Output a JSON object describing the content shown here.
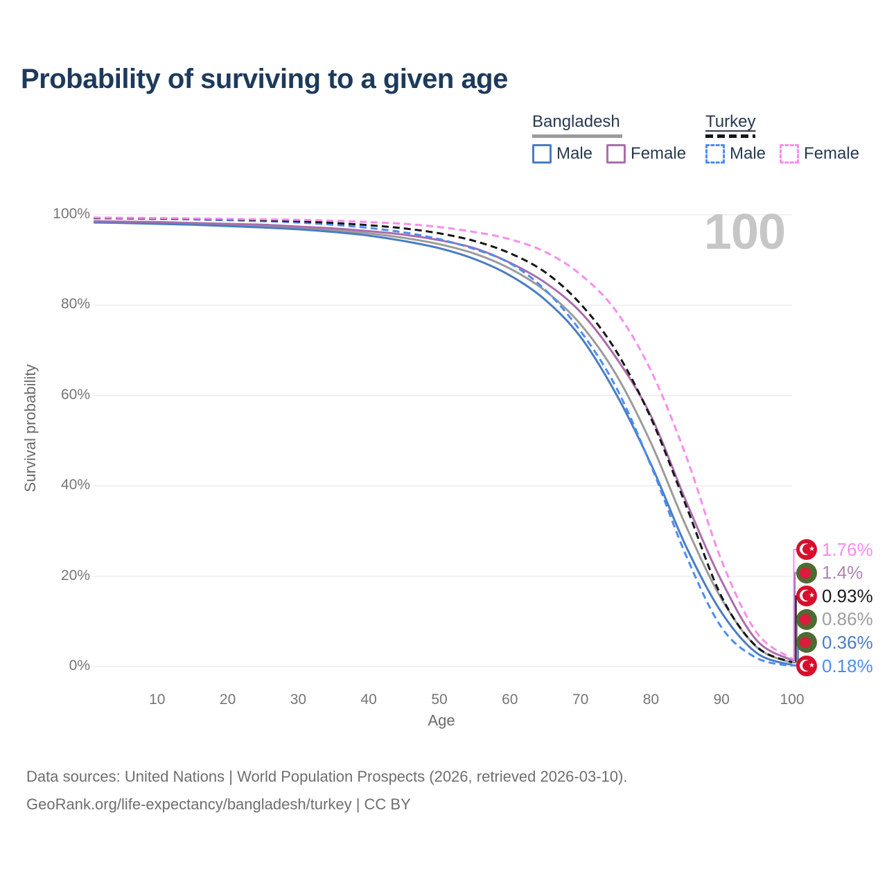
{
  "header": {
    "title": "Probability of surviving to a given age"
  },
  "watermark": "100",
  "legend": {
    "groups": [
      {
        "country": "Bangladesh",
        "style": "solid",
        "underline_color": "#9b9b9b",
        "items": [
          {
            "label": "Male",
            "color": "#4a7cc4"
          },
          {
            "label": "Female",
            "color": "#aa6dab"
          }
        ]
      },
      {
        "country": "Turkey",
        "style": "dashed",
        "underline_color": "#161616",
        "items": [
          {
            "label": "Male",
            "color": "#4b8df2"
          },
          {
            "label": "Female",
            "color": "#fb8bf0"
          }
        ]
      }
    ]
  },
  "chart_data": {
    "type": "line",
    "title": "Probability of surviving to a given age",
    "xlabel": "Age",
    "ylabel": "Survival probability",
    "xlim": [
      0,
      100
    ],
    "ylim": [
      0,
      100
    ],
    "xticks": [
      10,
      20,
      30,
      40,
      50,
      60,
      70,
      80,
      90,
      100
    ],
    "yticks": [
      0,
      20,
      40,
      60,
      80,
      100
    ],
    "ytick_format": "percent",
    "grid": "horizontal",
    "legend_position": "top-right",
    "x": [
      1,
      5,
      10,
      15,
      20,
      25,
      30,
      35,
      40,
      45,
      50,
      55,
      60,
      65,
      70,
      75,
      80,
      85,
      90,
      95,
      100
    ],
    "series": [
      {
        "id": "bd-both",
        "name": "Bangladesh Both sexes",
        "country": "Bangladesh",
        "sex": "both",
        "line": "solid",
        "color": "#9b9b9b",
        "values": [
          98.45,
          98.35,
          98.2,
          98.0,
          97.8,
          97.5,
          97.1,
          96.6,
          95.9,
          94.9,
          93.5,
          91.4,
          88.1,
          83.2,
          75.8,
          64.8,
          49.5,
          31.0,
          15.0,
          4.3,
          0.86
        ]
      },
      {
        "id": "bd-male",
        "name": "Bangladesh Male",
        "country": "Bangladesh",
        "sex": "male",
        "line": "solid",
        "color": "#4a7cc4",
        "values": [
          98.3,
          98.2,
          98.0,
          97.8,
          97.5,
          97.2,
          96.8,
          96.2,
          95.4,
          94.2,
          92.6,
          90.2,
          86.6,
          81.2,
          73.0,
          60.5,
          44.8,
          26.5,
          12.0,
          3.0,
          0.36
        ]
      },
      {
        "id": "bd-female",
        "name": "Bangladesh Female",
        "country": "Bangladesh",
        "sex": "female",
        "line": "solid",
        "color": "#aa6dab",
        "values": [
          98.6,
          98.5,
          98.4,
          98.2,
          98.0,
          97.8,
          97.4,
          97.0,
          96.4,
          95.6,
          94.4,
          92.6,
          89.4,
          85.0,
          78.5,
          68.5,
          55.5,
          36.5,
          19.0,
          5.8,
          1.4
        ]
      },
      {
        "id": "tr-male",
        "name": "Turkey Male",
        "country": "Turkey",
        "sex": "male",
        "line": "dashed",
        "color": "#4b8df2",
        "values": [
          99.25,
          99.2,
          99.1,
          99.0,
          98.8,
          98.6,
          98.3,
          97.8,
          97.1,
          96.1,
          94.6,
          92.4,
          89.3,
          83.4,
          74.3,
          62.0,
          44.5,
          24.5,
          8.7,
          1.9,
          0.18
        ]
      },
      {
        "id": "tr-both",
        "name": "Turkey Both sexes",
        "country": "Turkey",
        "sex": "both",
        "line": "dashed",
        "color": "#161616",
        "values": [
          99.3,
          99.25,
          99.2,
          99.1,
          99.0,
          98.8,
          98.6,
          98.2,
          97.7,
          97.0,
          95.9,
          94.2,
          91.5,
          87.3,
          80.3,
          70.0,
          55.0,
          35.5,
          15.5,
          4.4,
          0.93
        ]
      },
      {
        "id": "tr-female",
        "name": "Turkey Female",
        "country": "Turkey",
        "sex": "female",
        "line": "dashed",
        "color": "#fb8bf0",
        "values": [
          99.4,
          99.35,
          99.3,
          99.2,
          99.1,
          99.0,
          98.9,
          98.7,
          98.4,
          98.0,
          97.3,
          96.2,
          94.6,
          91.8,
          86.8,
          78.8,
          65.5,
          46.5,
          23.5,
          7.5,
          1.76
        ]
      }
    ],
    "end_labels": [
      {
        "series": "tr-female",
        "flag": "tr",
        "country": "Turkey",
        "label": "1.76%",
        "color": "#f98bee"
      },
      {
        "series": "bd-female",
        "flag": "bd",
        "country": "Bangladesh",
        "label": "1.4%",
        "color": "#b185b1"
      },
      {
        "series": "tr-both",
        "flag": "tr",
        "country": "Turkey",
        "label": "0.93%",
        "color": "#1a1a1a"
      },
      {
        "series": "bd-both",
        "flag": "bd",
        "country": "Bangladesh",
        "label": "0.86%",
        "color": "#9e9e9e"
      },
      {
        "series": "bd-male",
        "flag": "bd",
        "country": "Bangladesh",
        "label": "0.36%",
        "color": "#4a7cc4"
      },
      {
        "series": "tr-male",
        "flag": "tr",
        "country": "Turkey",
        "label": "0.18%",
        "color": "#4b8df2"
      }
    ]
  },
  "footer": {
    "line1": "Data sources: United Nations | World Population Prospects (2026, retrieved 2026-03-10).",
    "line2": "GeoRank.org/life-expectancy/bangladesh/turkey | CC BY"
  }
}
